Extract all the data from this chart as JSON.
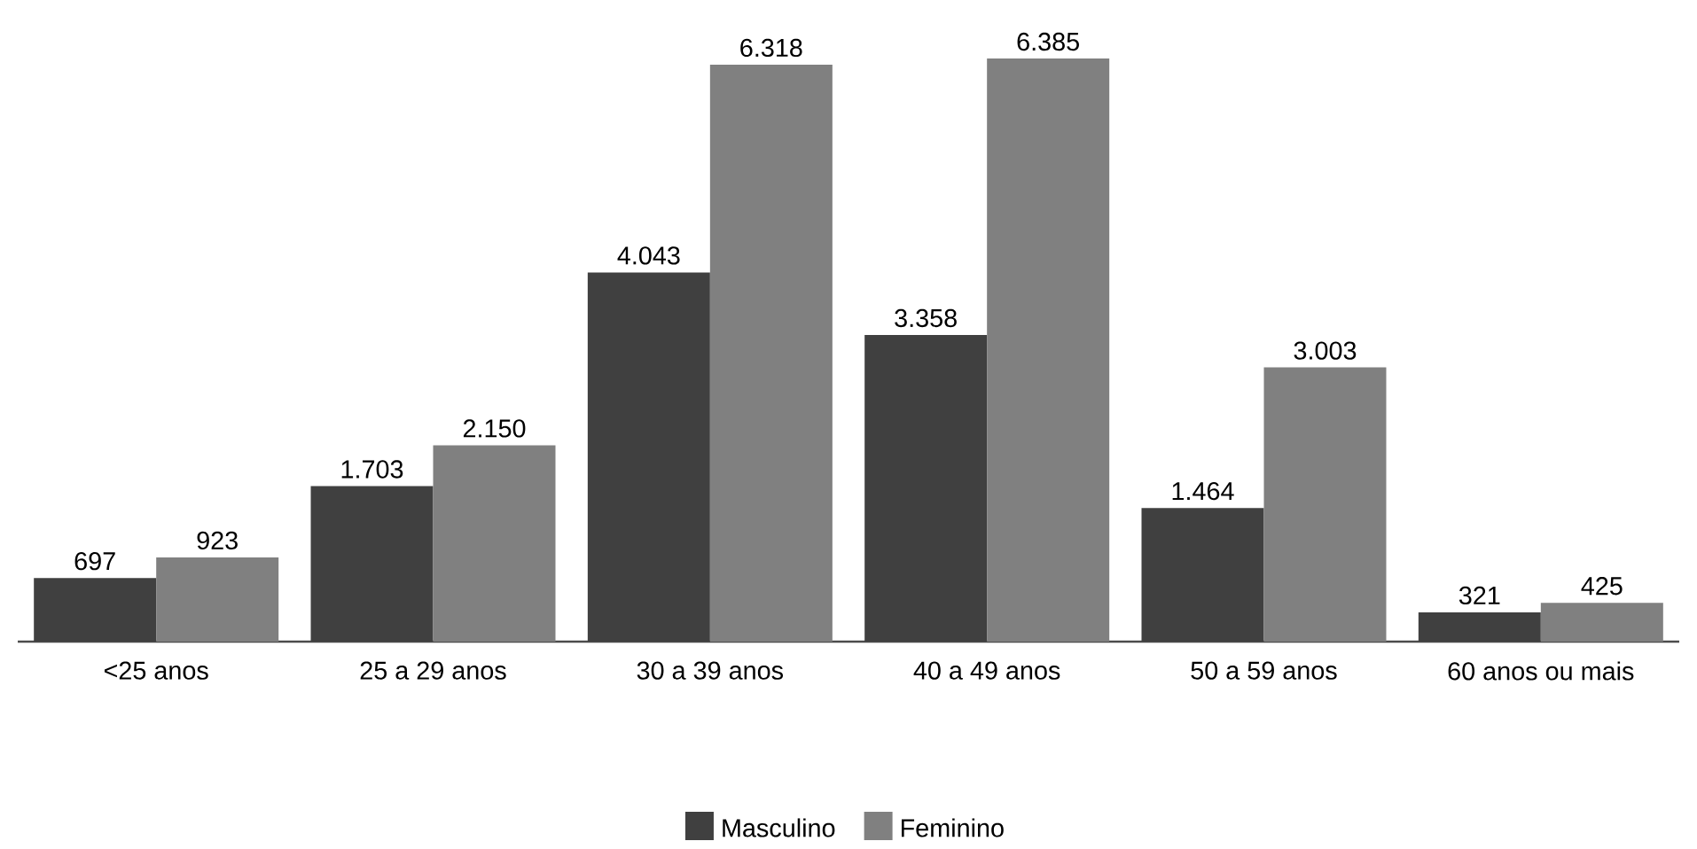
{
  "chart_data": {
    "type": "bar",
    "categories": [
      "<25 anos",
      "25 a 29 anos",
      "30 a 39 anos",
      "40 a 49 anos",
      "50 a 59 anos",
      "60 anos ou mais"
    ],
    "series": [
      {
        "name": "Masculino",
        "color": "#404040",
        "values": [
          697,
          1703,
          4043,
          3358,
          1464,
          321
        ],
        "value_labels": [
          "697",
          "1.703",
          "4.043",
          "3.358",
          "1.464",
          "321"
        ]
      },
      {
        "name": "Feminino",
        "color": "#808080",
        "values": [
          923,
          2150,
          6318,
          6385,
          3003,
          425
        ],
        "value_labels": [
          "923",
          "2.150",
          "6.318",
          "6.385",
          "3.003",
          "425"
        ]
      }
    ],
    "legend": "bottom"
  }
}
